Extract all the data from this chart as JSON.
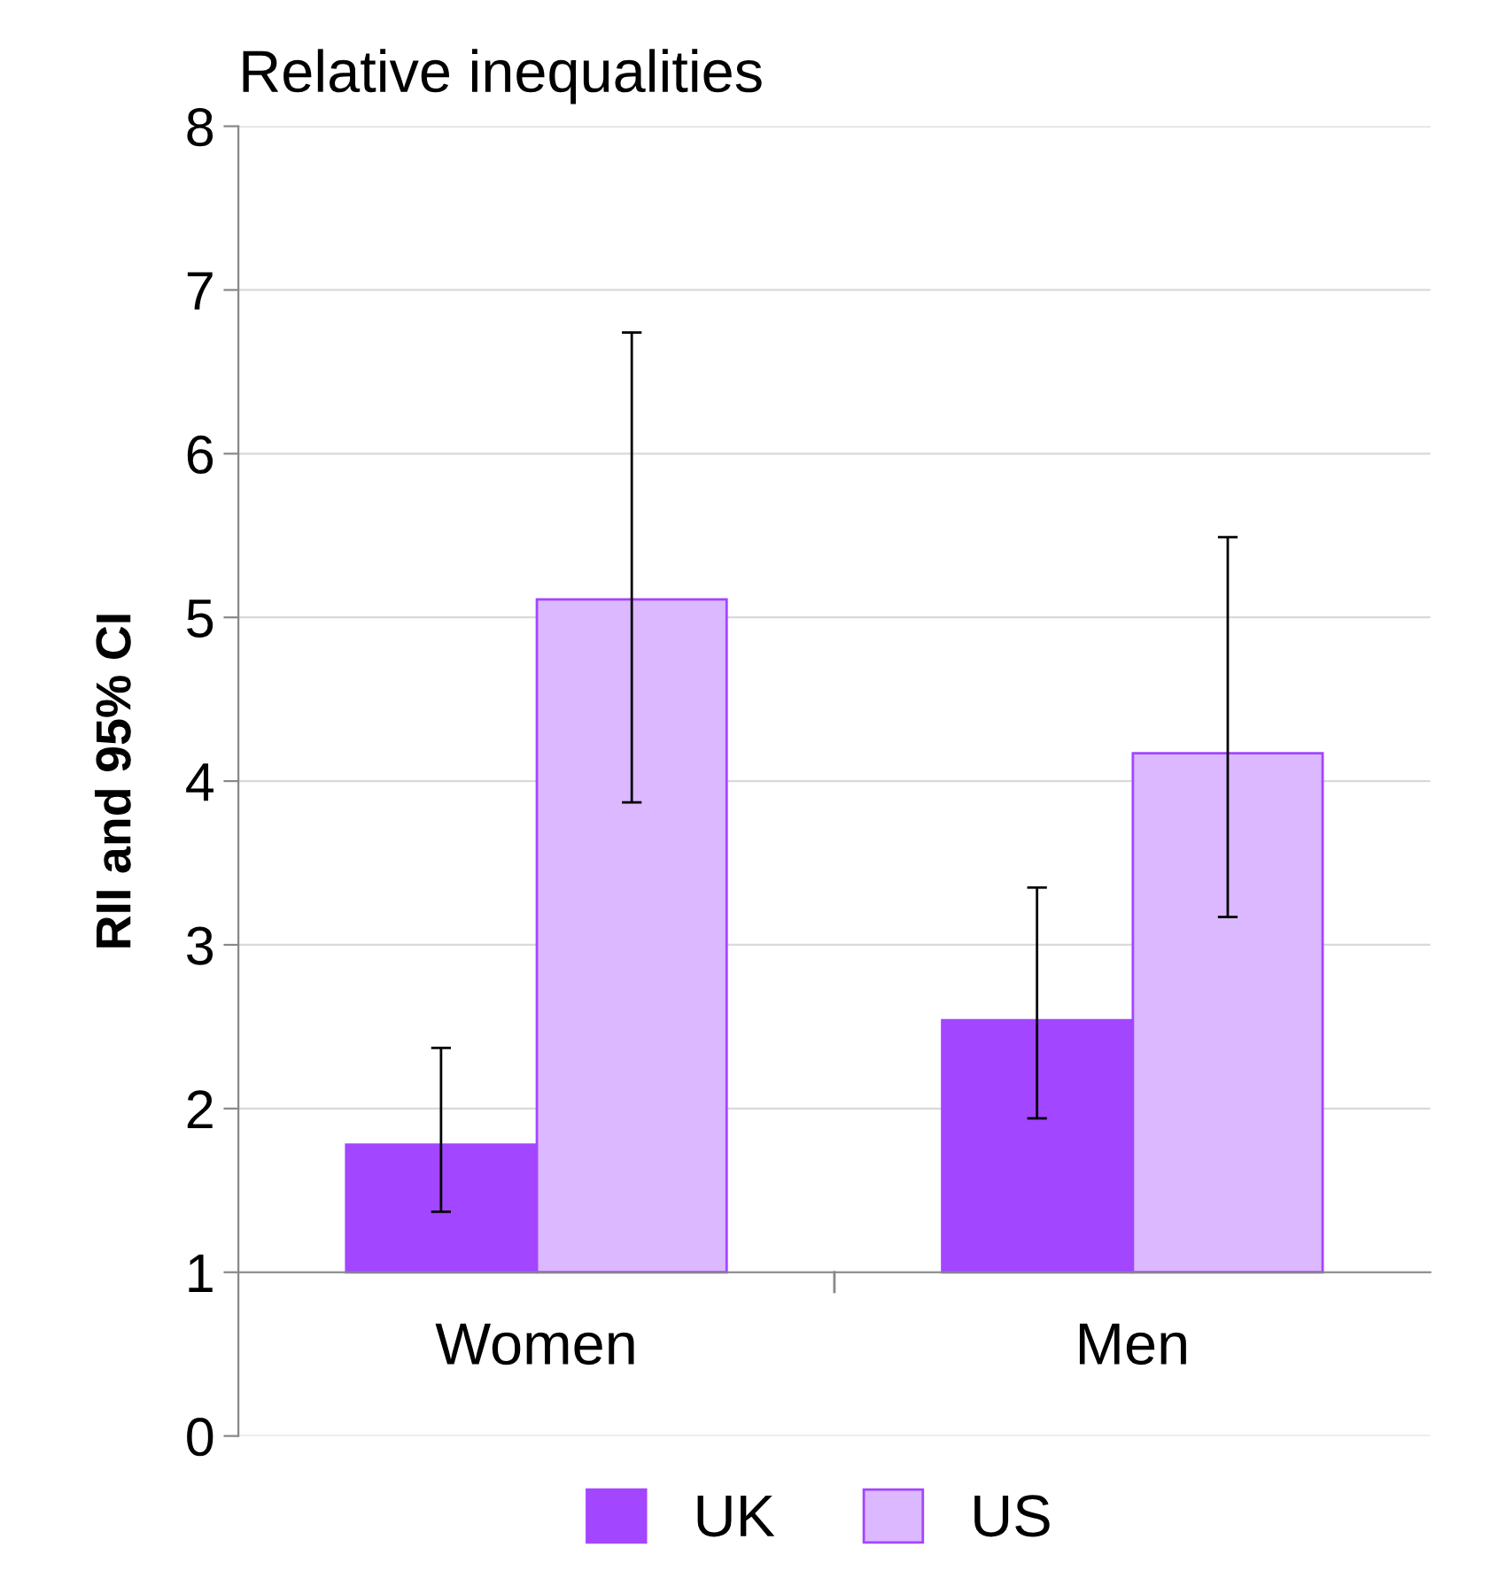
{
  "chart_data": {
    "type": "bar",
    "title": "Relative inequalities",
    "ylabel": "RII and 95% CI",
    "categories": [
      "Women",
      "Men"
    ],
    "series": [
      {
        "name": "UK",
        "color": "#a346ff",
        "base": [
          1,
          1
        ],
        "values": [
          0.78,
          1.54
        ],
        "errors": [
          [
            1.37,
            2.37
          ],
          [
            1.94,
            3.35
          ]
        ]
      },
      {
        "name": "US",
        "color": "#dbb8ff",
        "base": [
          1,
          1
        ],
        "values": [
          4.11,
          3.17
        ],
        "errors": [
          [
            3.87,
            6.74
          ],
          [
            3.17,
            5.49
          ]
        ]
      }
    ],
    "ylim": [
      0,
      8
    ],
    "yticks": [
      0,
      1,
      2,
      3,
      4,
      5,
      6,
      7,
      8
    ],
    "grid": "y",
    "legend": "bottom"
  }
}
